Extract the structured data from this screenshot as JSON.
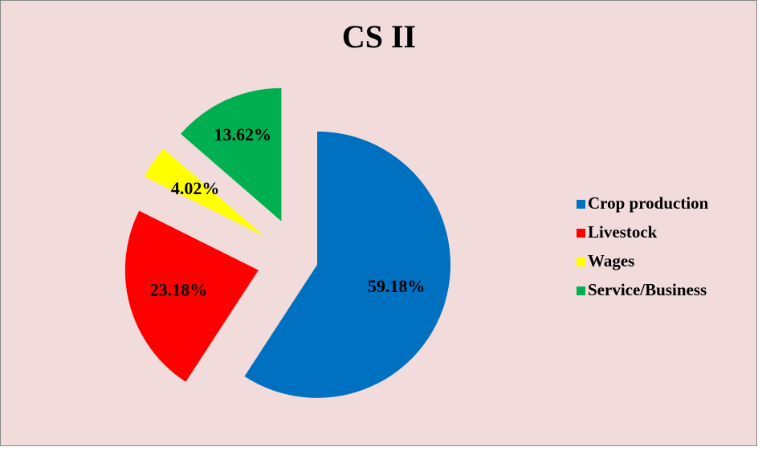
{
  "chart_data": {
    "type": "pie",
    "title": "CS II",
    "categories": [
      "Crop production",
      "Livestock",
      "Wages",
      "Service/Business"
    ],
    "values": [
      59.18,
      23.18,
      4.02,
      13.62
    ],
    "value_labels": [
      "59.18%",
      "23.18%",
      "4.02%",
      "13.62%"
    ],
    "colors": [
      "#0070c0",
      "#ff0000",
      "#ffff00",
      "#00b050"
    ],
    "legend": "right"
  }
}
